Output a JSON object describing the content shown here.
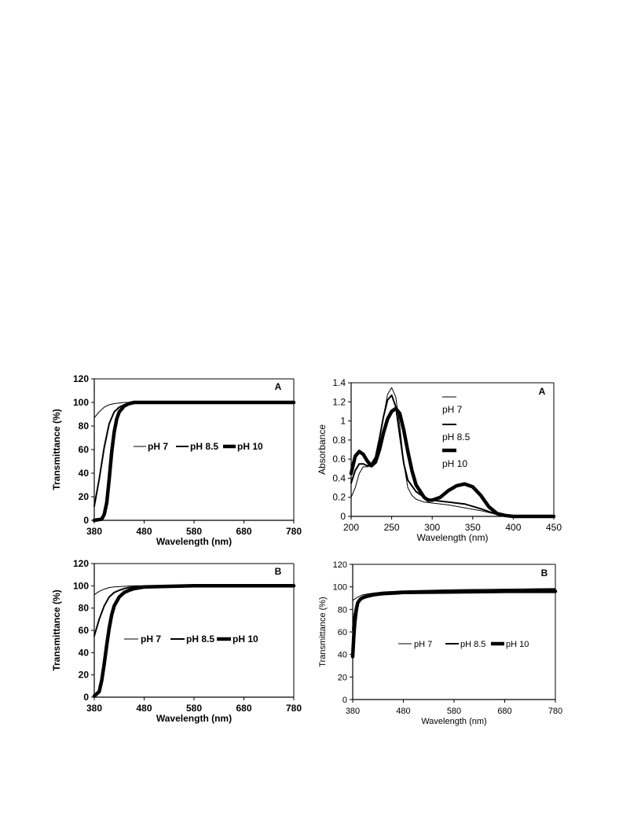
{
  "chart_data": [
    {
      "panel": "A",
      "type": "line",
      "xlabel": "Wavelength (nm)",
      "ylabel": "Transmittance (%)",
      "xlim": [
        380,
        780
      ],
      "ylim": [
        0,
        120
      ],
      "xticks": [
        380,
        480,
        580,
        680,
        780
      ],
      "yticks": [
        0,
        20,
        40,
        60,
        80,
        100,
        120
      ],
      "grid": false,
      "legend_position": "center-right",
      "series": [
        {
          "name": "pH 7",
          "weight": "thin",
          "x": [
            380,
            390,
            400,
            410,
            420,
            430,
            440,
            460,
            480,
            580,
            680,
            780
          ],
          "y": [
            87,
            92,
            96,
            98,
            99,
            99.5,
            100,
            100,
            100,
            100,
            100,
            100
          ]
        },
        {
          "name": "pH 8.5",
          "weight": "medium",
          "x": [
            380,
            390,
            400,
            410,
            420,
            430,
            440,
            450,
            460,
            480,
            580,
            680,
            780
          ],
          "y": [
            12,
            35,
            62,
            82,
            92,
            96,
            98,
            99,
            99.5,
            100,
            100,
            100,
            100
          ]
        },
        {
          "name": "pH 10",
          "weight": "thick",
          "x": [
            380,
            395,
            400,
            405,
            410,
            415,
            420,
            425,
            430,
            440,
            450,
            460,
            480,
            580,
            680,
            780
          ],
          "y": [
            0,
            1,
            5,
            15,
            35,
            58,
            75,
            86,
            92,
            97,
            99,
            100,
            100,
            100,
            100,
            100
          ]
        }
      ]
    },
    {
      "panel": "A",
      "type": "line",
      "xlabel": "Wavelength (nm)",
      "ylabel": "Absorbance",
      "xlim": [
        200,
        450
      ],
      "ylim": [
        0,
        1.4
      ],
      "xticks": [
        200,
        250,
        300,
        350,
        400,
        450
      ],
      "yticks": [
        0,
        0.2,
        0.4,
        0.6,
        0.8,
        1,
        1.2,
        1.4
      ],
      "ytick_labels": [
        "0",
        "0.2",
        "0.4",
        "0.6",
        "0.8",
        "1",
        "1.2",
        "1.4"
      ],
      "grid": false,
      "legend_position": "right",
      "series": [
        {
          "name": "pH 7",
          "weight": "thin",
          "x": [
            200,
            205,
            210,
            215,
            220,
            225,
            230,
            235,
            240,
            245,
            250,
            255,
            260,
            265,
            270,
            275,
            280,
            290,
            300,
            320,
            340,
            360,
            380,
            400,
            450
          ],
          "y": [
            0.2,
            0.3,
            0.45,
            0.52,
            0.52,
            0.53,
            0.6,
            0.8,
            1.05,
            1.28,
            1.35,
            1.25,
            0.95,
            0.55,
            0.3,
            0.22,
            0.18,
            0.15,
            0.14,
            0.12,
            0.09,
            0.06,
            0.02,
            0,
            0
          ]
        },
        {
          "name": "pH 8.5",
          "weight": "medium",
          "x": [
            200,
            205,
            210,
            215,
            220,
            225,
            230,
            235,
            240,
            245,
            250,
            255,
            260,
            265,
            270,
            280,
            290,
            300,
            320,
            340,
            360,
            370,
            380,
            400,
            450
          ],
          "y": [
            0.35,
            0.48,
            0.55,
            0.55,
            0.53,
            0.55,
            0.62,
            0.82,
            1.05,
            1.22,
            1.27,
            1.15,
            0.85,
            0.55,
            0.38,
            0.26,
            0.2,
            0.17,
            0.15,
            0.13,
            0.08,
            0.05,
            0.02,
            0,
            0
          ]
        },
        {
          "name": "pH 10",
          "weight": "thick",
          "x": [
            200,
            205,
            210,
            215,
            220,
            225,
            230,
            235,
            240,
            245,
            250,
            255,
            260,
            265,
            270,
            275,
            280,
            290,
            295,
            300,
            310,
            320,
            330,
            340,
            350,
            360,
            370,
            380,
            390,
            400,
            450
          ],
          "y": [
            0.45,
            0.63,
            0.68,
            0.65,
            0.58,
            0.53,
            0.57,
            0.7,
            0.88,
            1.02,
            1.1,
            1.13,
            1.08,
            0.9,
            0.68,
            0.48,
            0.33,
            0.2,
            0.17,
            0.17,
            0.2,
            0.27,
            0.32,
            0.34,
            0.31,
            0.22,
            0.1,
            0.03,
            0.01,
            0,
            0
          ]
        }
      ]
    },
    {
      "panel": "B",
      "type": "line",
      "xlabel": "Wavelength (nm)",
      "ylabel": "Transmittance (%)",
      "xlim": [
        380,
        780
      ],
      "ylim": [
        0,
        120
      ],
      "xticks": [
        380,
        480,
        580,
        680,
        780
      ],
      "yticks": [
        0,
        20,
        40,
        60,
        80,
        100,
        120
      ],
      "grid": false,
      "legend_position": "center-right",
      "series": [
        {
          "name": "pH 7",
          "weight": "thin",
          "x": [
            380,
            390,
            400,
            410,
            420,
            440,
            460,
            480,
            580,
            680,
            780
          ],
          "y": [
            92,
            95,
            97,
            98.5,
            99,
            99.5,
            100,
            100,
            100,
            100,
            100
          ]
        },
        {
          "name": "pH 8.5",
          "weight": "medium",
          "x": [
            380,
            390,
            400,
            410,
            420,
            430,
            440,
            450,
            460,
            480,
            580,
            680,
            780
          ],
          "y": [
            55,
            70,
            82,
            90,
            94,
            96,
            97.5,
            98.5,
            99,
            99.5,
            100,
            100,
            100
          ]
        },
        {
          "name": "pH 10",
          "weight": "thick",
          "x": [
            380,
            390,
            395,
            400,
            405,
            410,
            415,
            420,
            430,
            440,
            450,
            460,
            480,
            580,
            680,
            780
          ],
          "y": [
            1,
            5,
            15,
            30,
            47,
            62,
            74,
            82,
            90,
            94,
            96,
            97.5,
            99,
            100,
            100,
            100
          ]
        }
      ]
    },
    {
      "panel": "B",
      "type": "line",
      "xlabel": "Wavelength (nm)",
      "ylabel": "Transmittance (%)",
      "xlim": [
        380,
        780
      ],
      "ylim": [
        0,
        120
      ],
      "xticks": [
        380,
        480,
        580,
        680,
        780
      ],
      "yticks": [
        0,
        20,
        40,
        60,
        80,
        100,
        120
      ],
      "grid": false,
      "legend_position": "center-right",
      "series": [
        {
          "name": "pH 7",
          "weight": "thin",
          "x": [
            380,
            390,
            400,
            420,
            440,
            480,
            580,
            680,
            780
          ],
          "y": [
            88,
            91,
            93,
            94.5,
            95.5,
            96.5,
            97.5,
            98,
            98.5
          ]
        },
        {
          "name": "pH 8.5",
          "weight": "medium",
          "x": [
            380,
            383,
            386,
            390,
            395,
            400,
            410,
            420,
            440,
            480,
            580,
            680,
            780
          ],
          "y": [
            62,
            75,
            82,
            86,
            88,
            89.5,
            91,
            92,
            93.5,
            95,
            96.5,
            97,
            97.5
          ]
        },
        {
          "name": "pH 10",
          "weight": "thick",
          "x": [
            380,
            382,
            384,
            386,
            388,
            390,
            395,
            400,
            410,
            420,
            440,
            480,
            580,
            680,
            780
          ],
          "y": [
            38,
            55,
            68,
            76,
            82,
            86,
            89,
            90.5,
            92,
            93,
            94,
            95,
            95.5,
            96,
            96
          ]
        }
      ]
    }
  ]
}
